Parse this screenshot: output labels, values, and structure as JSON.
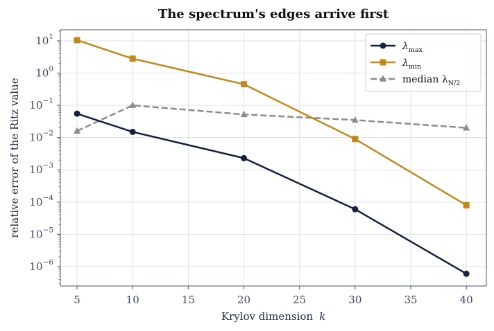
{
  "chart_data": {
    "type": "line",
    "title": "The spectrum's edges arrive first",
    "xlabel": "Krylov dimension",
    "xlabel_symbol": "k",
    "ylabel": "relative error of the Ritz value",
    "x": [
      5,
      10,
      20,
      30,
      40
    ],
    "xlim": [
      3.5,
      41.8
    ],
    "x_ticks": [
      5,
      10,
      15,
      20,
      25,
      30,
      35,
      40
    ],
    "y_scale": "log",
    "ylim": [
      2.5e-07,
      22
    ],
    "y_ticks": [
      {
        "value": 1e-06,
        "base": "10",
        "exp": "−6"
      },
      {
        "value": 1e-05,
        "base": "10",
        "exp": "−5"
      },
      {
        "value": 0.0001,
        "base": "10",
        "exp": "−4"
      },
      {
        "value": 0.001,
        "base": "10",
        "exp": "−3"
      },
      {
        "value": 0.01,
        "base": "10",
        "exp": "−2"
      },
      {
        "value": 0.1,
        "base": "10",
        "exp": "−1"
      },
      {
        "value": 1,
        "base": "10",
        "exp": "0"
      },
      {
        "value": 10,
        "base": "10",
        "exp": "1"
      }
    ],
    "grid": true,
    "legend_position": "top-right",
    "series": [
      {
        "name": "λ",
        "name_sub": "max",
        "values": [
          0.055,
          0.015,
          0.0023,
          6e-05,
          6e-07
        ],
        "color": "#17213f",
        "marker": "circle",
        "dash": "solid"
      },
      {
        "name": "λ",
        "name_sub": "min",
        "values": [
          10.5,
          2.8,
          0.45,
          0.009,
          8e-05
        ],
        "color": "#c0891f",
        "marker": "square",
        "dash": "solid"
      },
      {
        "name": "median  λ",
        "name_sub": "N/2",
        "values": [
          0.016,
          0.1,
          0.052,
          0.035,
          0.02
        ],
        "color": "#8c8c8c",
        "marker": "triangle",
        "dash": "dashed"
      }
    ]
  }
}
